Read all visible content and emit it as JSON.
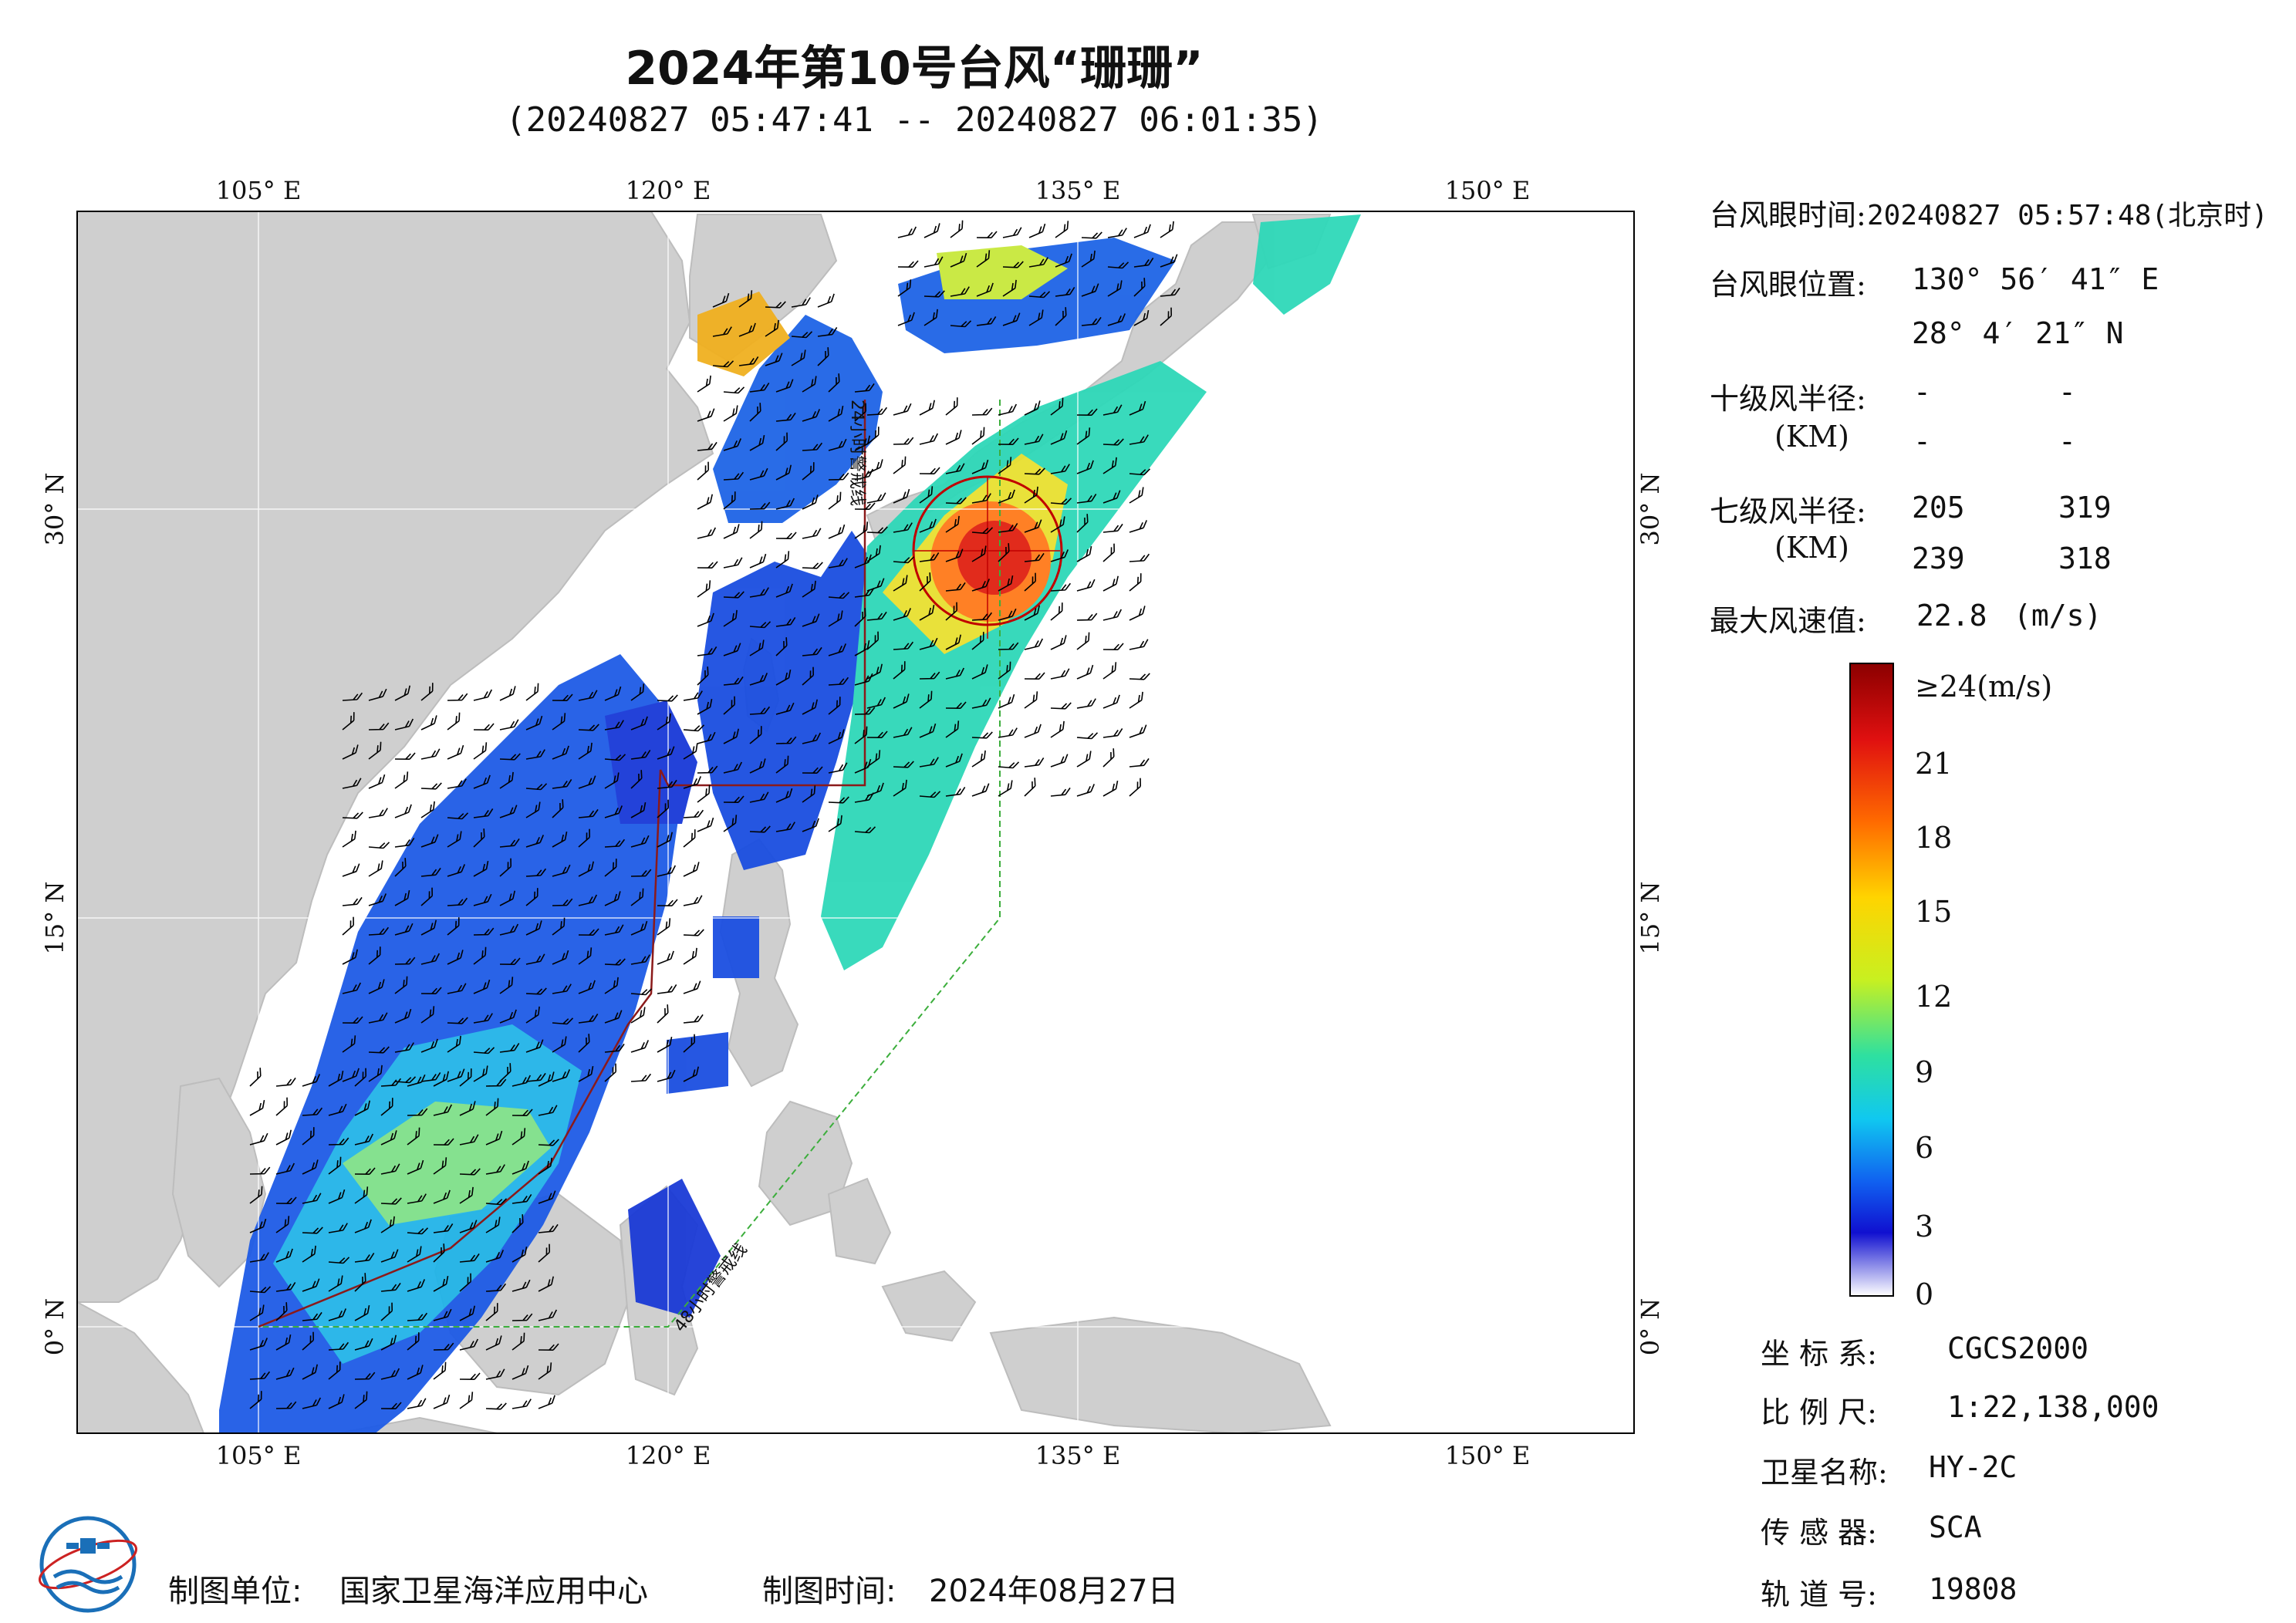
{
  "header": {
    "title": "2024年第10号台风“珊珊”",
    "subtitle": "(20240827 05:47:41 -- 20240827 06:01:35)"
  },
  "map": {
    "lon_ticks_top": [
      "105° E",
      "120° E",
      "135° E",
      "150° E"
    ],
    "lon_ticks_bottom": [
      "105° E",
      "120° E",
      "135° E",
      "150° E"
    ],
    "lat_ticks_left": [
      "30° N",
      "15° N",
      "0° N"
    ],
    "lat_ticks_right": [
      "30° N",
      "15° N",
      "0° N"
    ],
    "line_label_24h": "24小时警戒线",
    "line_label_48h": "48小时警戒线",
    "colors": {
      "land": "#cfcfcf",
      "sea": "#ffffff",
      "warning24": "#8b1a1a",
      "warning48": "#3cae3c",
      "typhoon_circle": "#c00000"
    }
  },
  "info": {
    "eye_time_label": "台风眼时间:",
    "eye_time_value": "20240827 05:57:48(北京时)",
    "eye_pos_label": "台风眼位置:",
    "eye_lon": "130° 56′ 41″ E",
    "eye_lat": "28° 4′ 21″ N",
    "r10_label": "十级风半径:",
    "r10_unit": "(KM)",
    "r10_values": [
      "-",
      "-",
      "-",
      "-"
    ],
    "r7_label": "七级风半径:",
    "r7_unit": "(KM)",
    "r7_values": [
      "205",
      "319",
      "239",
      "318"
    ],
    "max_wind_label": "最大风速值:",
    "max_wind_value": "22.8",
    "max_wind_unit": "(m/s)"
  },
  "colorbar": {
    "labels": [
      "≥24(m/s)",
      "21",
      "18",
      "15",
      "12",
      "9",
      "6",
      "3",
      "0"
    ],
    "stops": [
      "#8b0000",
      "#e01010",
      "#ff6a00",
      "#ffd400",
      "#c8f020",
      "#2ee0a0",
      "#10c8f0",
      "#1060f0",
      "#1010d0",
      "#ffffff"
    ]
  },
  "meta": {
    "crs_label": "坐 标 系:",
    "crs_value": "CGCS2000",
    "scale_label": "比 例 尺:",
    "scale_value": "1:22,138,000",
    "satellite_label": "卫星名称:",
    "satellite_value": "HY-2C",
    "sensor_label": "传 感 器:",
    "sensor_value": "SCA",
    "orbit_label": "轨 道 号:",
    "orbit_value": "19808"
  },
  "footer": {
    "org_label": "制图单位:",
    "org_value": "国家卫星海洋应用中心",
    "date_label": "制图时间:",
    "date_value": "2024年08月27日"
  }
}
